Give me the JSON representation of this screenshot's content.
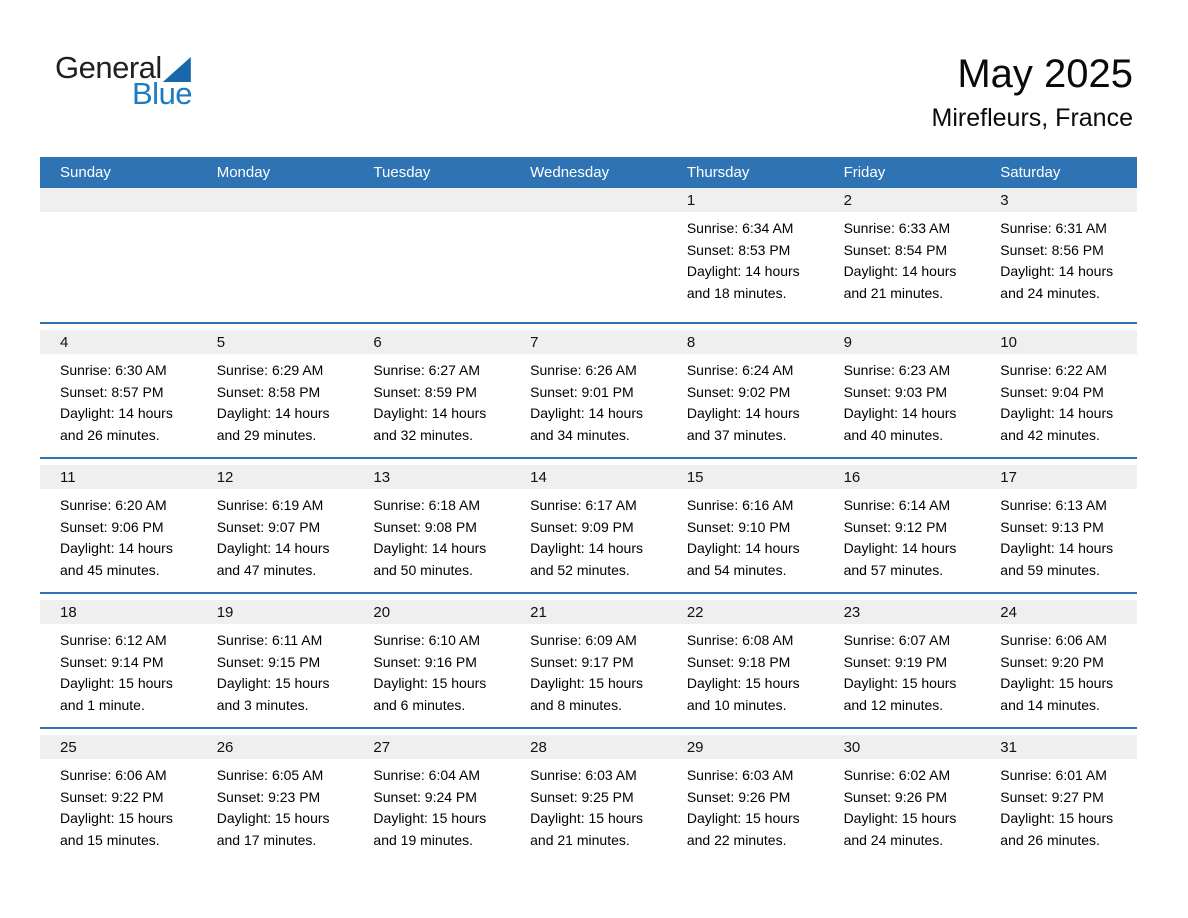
{
  "logo": {
    "word_top": "General",
    "word_bottom": "Blue",
    "triangle_icon": "blue-sail-triangle"
  },
  "title": {
    "month": "May 2025",
    "location": "Mirefleurs, France"
  },
  "colors": {
    "header_blue": "#2E74B5",
    "separator_blue": "#2E74B5",
    "day_strip_gray": "#EFEFEF",
    "logo_text_dark": "#231F20",
    "logo_blue": "#1B7BC4",
    "logo_triangle_blue": "#1767A9",
    "header_text_white": "#FFFFFF"
  },
  "weekdays": [
    "Sunday",
    "Monday",
    "Tuesday",
    "Wednesday",
    "Thursday",
    "Friday",
    "Saturday"
  ],
  "labels": {
    "sunrise": "Sunrise: ",
    "sunset": "Sunset: ",
    "daylight": "Daylight: "
  },
  "weeks": [
    [
      {
        "day": ""
      },
      {
        "day": ""
      },
      {
        "day": ""
      },
      {
        "day": ""
      },
      {
        "day": "1",
        "sunrise": "6:34 AM",
        "sunset": "8:53 PM",
        "daylight": "14 hours and 18 minutes."
      },
      {
        "day": "2",
        "sunrise": "6:33 AM",
        "sunset": "8:54 PM",
        "daylight": "14 hours and 21 minutes."
      },
      {
        "day": "3",
        "sunrise": "6:31 AM",
        "sunset": "8:56 PM",
        "daylight": "14 hours and 24 minutes."
      }
    ],
    [
      {
        "day": "4",
        "sunrise": "6:30 AM",
        "sunset": "8:57 PM",
        "daylight": "14 hours and 26 minutes."
      },
      {
        "day": "5",
        "sunrise": "6:29 AM",
        "sunset": "8:58 PM",
        "daylight": "14 hours and 29 minutes."
      },
      {
        "day": "6",
        "sunrise": "6:27 AM",
        "sunset": "8:59 PM",
        "daylight": "14 hours and 32 minutes."
      },
      {
        "day": "7",
        "sunrise": "6:26 AM",
        "sunset": "9:01 PM",
        "daylight": "14 hours and 34 minutes."
      },
      {
        "day": "8",
        "sunrise": "6:24 AM",
        "sunset": "9:02 PM",
        "daylight": "14 hours and 37 minutes."
      },
      {
        "day": "9",
        "sunrise": "6:23 AM",
        "sunset": "9:03 PM",
        "daylight": "14 hours and 40 minutes."
      },
      {
        "day": "10",
        "sunrise": "6:22 AM",
        "sunset": "9:04 PM",
        "daylight": "14 hours and 42 minutes."
      }
    ],
    [
      {
        "day": "11",
        "sunrise": "6:20 AM",
        "sunset": "9:06 PM",
        "daylight": "14 hours and 45 minutes."
      },
      {
        "day": "12",
        "sunrise": "6:19 AM",
        "sunset": "9:07 PM",
        "daylight": "14 hours and 47 minutes."
      },
      {
        "day": "13",
        "sunrise": "6:18 AM",
        "sunset": "9:08 PM",
        "daylight": "14 hours and 50 minutes."
      },
      {
        "day": "14",
        "sunrise": "6:17 AM",
        "sunset": "9:09 PM",
        "daylight": "14 hours and 52 minutes."
      },
      {
        "day": "15",
        "sunrise": "6:16 AM",
        "sunset": "9:10 PM",
        "daylight": "14 hours and 54 minutes."
      },
      {
        "day": "16",
        "sunrise": "6:14 AM",
        "sunset": "9:12 PM",
        "daylight": "14 hours and 57 minutes."
      },
      {
        "day": "17",
        "sunrise": "6:13 AM",
        "sunset": "9:13 PM",
        "daylight": "14 hours and 59 minutes."
      }
    ],
    [
      {
        "day": "18",
        "sunrise": "6:12 AM",
        "sunset": "9:14 PM",
        "daylight": "15 hours and 1 minute."
      },
      {
        "day": "19",
        "sunrise": "6:11 AM",
        "sunset": "9:15 PM",
        "daylight": "15 hours and 3 minutes."
      },
      {
        "day": "20",
        "sunrise": "6:10 AM",
        "sunset": "9:16 PM",
        "daylight": "15 hours and 6 minutes."
      },
      {
        "day": "21",
        "sunrise": "6:09 AM",
        "sunset": "9:17 PM",
        "daylight": "15 hours and 8 minutes."
      },
      {
        "day": "22",
        "sunrise": "6:08 AM",
        "sunset": "9:18 PM",
        "daylight": "15 hours and 10 minutes."
      },
      {
        "day": "23",
        "sunrise": "6:07 AM",
        "sunset": "9:19 PM",
        "daylight": "15 hours and 12 minutes."
      },
      {
        "day": "24",
        "sunrise": "6:06 AM",
        "sunset": "9:20 PM",
        "daylight": "15 hours and 14 minutes."
      }
    ],
    [
      {
        "day": "25",
        "sunrise": "6:06 AM",
        "sunset": "9:22 PM",
        "daylight": "15 hours and 15 minutes."
      },
      {
        "day": "26",
        "sunrise": "6:05 AM",
        "sunset": "9:23 PM",
        "daylight": "15 hours and 17 minutes."
      },
      {
        "day": "27",
        "sunrise": "6:04 AM",
        "sunset": "9:24 PM",
        "daylight": "15 hours and 19 minutes."
      },
      {
        "day": "28",
        "sunrise": "6:03 AM",
        "sunset": "9:25 PM",
        "daylight": "15 hours and 21 minutes."
      },
      {
        "day": "29",
        "sunrise": "6:03 AM",
        "sunset": "9:26 PM",
        "daylight": "15 hours and 22 minutes."
      },
      {
        "day": "30",
        "sunrise": "6:02 AM",
        "sunset": "9:26 PM",
        "daylight": "15 hours and 24 minutes."
      },
      {
        "day": "31",
        "sunrise": "6:01 AM",
        "sunset": "9:27 PM",
        "daylight": "15 hours and 26 minutes."
      }
    ]
  ]
}
